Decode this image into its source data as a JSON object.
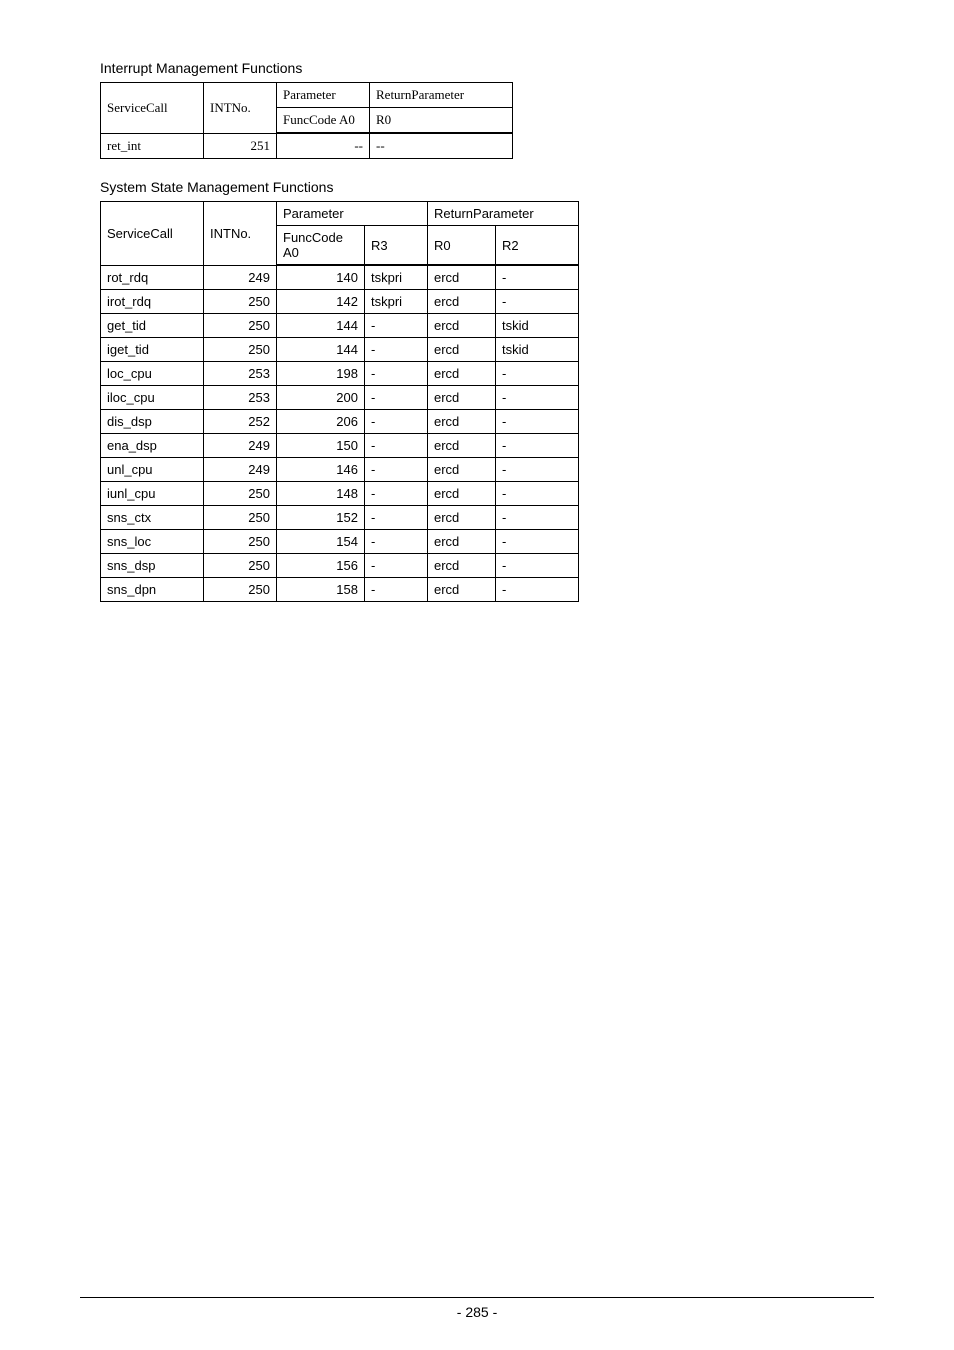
{
  "section1": {
    "title": "Interrupt Management Functions",
    "headers": {
      "serviceCall": "ServiceCall",
      "intNo": "INTNo.",
      "parameter": "Parameter",
      "returnParameter": "ReturnParameter",
      "funcCode": "FuncCode A0",
      "r0": "R0"
    },
    "rows": [
      {
        "serviceCall": "ret_int",
        "intNo": "251",
        "funcCode": "--",
        "r0": "--"
      }
    ]
  },
  "section2": {
    "title": "System State Management Functions",
    "headers": {
      "serviceCall": "ServiceCall",
      "intNo": "INTNo.",
      "parameter": "Parameter",
      "returnParameter": "ReturnParameter",
      "funcCode": "FuncCode A0",
      "r3": "R3",
      "r0": "R0",
      "r2": "R2"
    },
    "rows": [
      {
        "serviceCall": "rot_rdq",
        "intNo": "249",
        "funcCode": "140",
        "r3": "tskpri",
        "r0": "ercd",
        "r2": "-"
      },
      {
        "serviceCall": "irot_rdq",
        "intNo": "250",
        "funcCode": "142",
        "r3": "tskpri",
        "r0": "ercd",
        "r2": "-"
      },
      {
        "serviceCall": "get_tid",
        "intNo": "250",
        "funcCode": "144",
        "r3": "-",
        "r0": "ercd",
        "r2": "tskid"
      },
      {
        "serviceCall": "iget_tid",
        "intNo": "250",
        "funcCode": "144",
        "r3": "-",
        "r0": "ercd",
        "r2": "tskid"
      },
      {
        "serviceCall": "loc_cpu",
        "intNo": "253",
        "funcCode": "198",
        "r3": "-",
        "r0": "ercd",
        "r2": "-"
      },
      {
        "serviceCall": "iloc_cpu",
        "intNo": "253",
        "funcCode": "200",
        "r3": "-",
        "r0": "ercd",
        "r2": "-"
      },
      {
        "serviceCall": "dis_dsp",
        "intNo": "252",
        "funcCode": "206",
        "r3": "-",
        "r0": "ercd",
        "r2": "-"
      },
      {
        "serviceCall": "ena_dsp",
        "intNo": "249",
        "funcCode": "150",
        "r3": "-",
        "r0": "ercd",
        "r2": "-"
      },
      {
        "serviceCall": "unl_cpu",
        "intNo": "249",
        "funcCode": "146",
        "r3": "-",
        "r0": "ercd",
        "r2": "-"
      },
      {
        "serviceCall": "iunl_cpu",
        "intNo": "250",
        "funcCode": "148",
        "r3": "-",
        "r0": "ercd",
        "r2": "-"
      },
      {
        "serviceCall": "sns_ctx",
        "intNo": "250",
        "funcCode": "152",
        "r3": "-",
        "r0": "ercd",
        "r2": "-"
      },
      {
        "serviceCall": "sns_loc",
        "intNo": "250",
        "funcCode": "154",
        "r3": "-",
        "r0": "ercd",
        "r2": "-"
      },
      {
        "serviceCall": "sns_dsp",
        "intNo": "250",
        "funcCode": "156",
        "r3": "-",
        "r0": "ercd",
        "r2": "-"
      },
      {
        "serviceCall": "sns_dpn",
        "intNo": "250",
        "funcCode": "158",
        "r3": "-",
        "r0": "ercd",
        "r2": "-"
      }
    ]
  },
  "footer": {
    "pageNumber": "- 285 -"
  },
  "style": {
    "col_widths_t1": {
      "c1": "90px",
      "c2": "60px",
      "c3": "80px",
      "c4": "130px"
    },
    "col_widths_t2": {
      "c1": "90px",
      "c2": "60px",
      "c3": "75px",
      "c4": "50px",
      "c5": "55px",
      "c6": "70px"
    }
  }
}
